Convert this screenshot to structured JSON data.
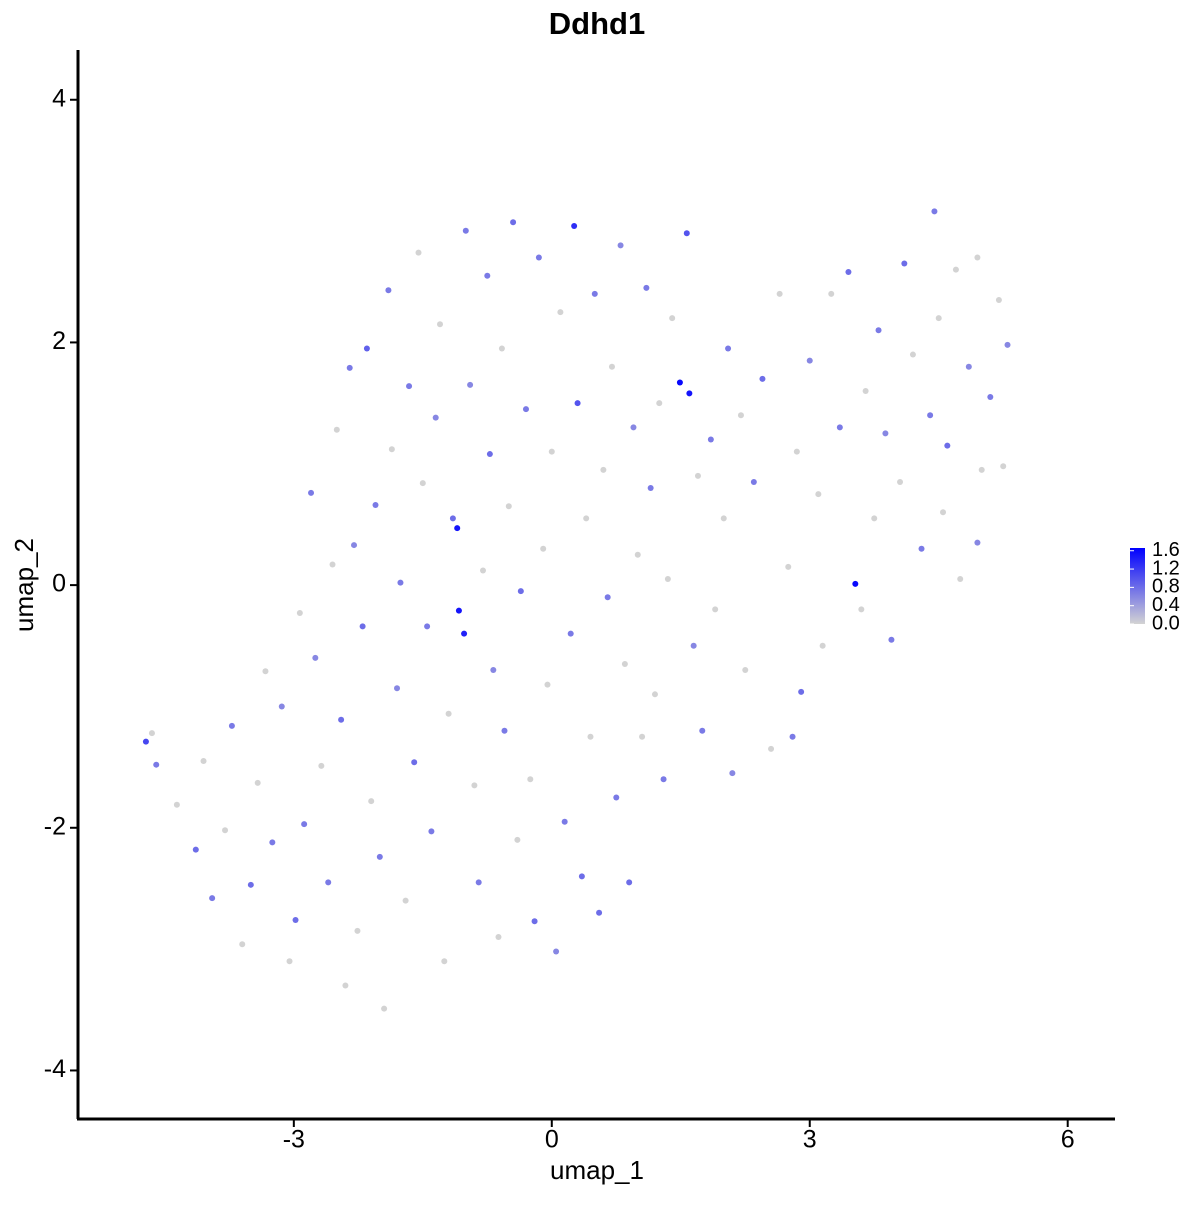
{
  "chart_data": {
    "type": "scatter",
    "title": "Ddhd1",
    "xlabel": "umap_1",
    "ylabel": "umap_2",
    "xlim": [
      -5.51,
      6.55
    ],
    "ylim": [
      -4.4,
      4.41
    ],
    "xticks": [
      -3,
      0,
      3,
      6
    ],
    "yticks": [
      -4,
      -2,
      0,
      2,
      4
    ],
    "grid": false,
    "color_low": "#d3d3d3",
    "color_high": "#0000ff",
    "colorbar": {
      "lim": [
        0,
        1.66
      ],
      "ticks": [
        {
          "value": 0,
          "label": "0.0"
        },
        0.4,
        0.8,
        1.2,
        1.6
      ]
    },
    "x": [
      -4.72,
      -4.65,
      -4.6,
      -4.36,
      -4.14,
      -4.05,
      -3.95,
      -3.8,
      -3.72,
      -3.6,
      -3.5,
      -3.42,
      -3.33,
      -3.25,
      -3.14,
      -3.05,
      -2.98,
      -2.93,
      -2.88,
      -2.8,
      -2.75,
      -2.68,
      -2.6,
      -2.55,
      -2.5,
      -2.45,
      -2.4,
      -2.35,
      -2.3,
      -2.26,
      -2.2,
      -2.15,
      -2.1,
      -2.05,
      -2.0,
      -1.95,
      -1.9,
      -1.86,
      -1.8,
      -1.76,
      -1.7,
      -1.66,
      -1.6,
      -1.55,
      -1.5,
      -1.45,
      -1.4,
      -1.35,
      -1.3,
      -1.25,
      -1.2,
      -1.15,
      -1.1,
      -1.08,
      -1.02,
      -1.0,
      -0.95,
      -0.9,
      -0.85,
      -0.8,
      -0.75,
      -0.72,
      -0.68,
      -0.62,
      -0.58,
      -0.55,
      -0.5,
      -0.45,
      -0.4,
      -0.36,
      -0.3,
      -0.25,
      -0.2,
      -0.15,
      -0.1,
      -0.05,
      0.0,
      0.05,
      0.1,
      0.15,
      0.22,
      0.26,
      0.3,
      0.35,
      0.4,
      0.45,
      0.5,
      0.55,
      0.6,
      0.65,
      0.7,
      0.75,
      0.8,
      0.85,
      0.9,
      0.95,
      1.0,
      1.05,
      1.1,
      1.15,
      1.2,
      1.25,
      1.3,
      1.35,
      1.4,
      1.49,
      1.57,
      1.6,
      1.65,
      1.7,
      1.75,
      1.85,
      1.9,
      2.0,
      2.05,
      2.1,
      2.2,
      2.25,
      2.35,
      2.45,
      2.55,
      2.65,
      2.75,
      2.8,
      2.85,
      2.9,
      3.0,
      3.1,
      3.15,
      3.25,
      3.35,
      3.45,
      3.53,
      3.6,
      3.65,
      3.75,
      3.8,
      3.88,
      3.95,
      4.05,
      4.1,
      4.2,
      4.3,
      4.4,
      4.45,
      4.5,
      4.55,
      4.6,
      4.7,
      4.75,
      4.85,
      4.95,
      5.0,
      5.1,
      5.2,
      5.3,
      5.25,
      4.95
    ],
    "y": [
      -1.29,
      -1.22,
      -1.48,
      -1.81,
      -2.18,
      -1.45,
      -2.58,
      -2.02,
      -1.16,
      -2.96,
      -2.47,
      -1.63,
      -0.71,
      -2.12,
      -1.0,
      -3.1,
      -2.76,
      -0.23,
      -1.97,
      0.76,
      -0.6,
      -1.49,
      -2.45,
      0.17,
      1.28,
      -1.11,
      -3.3,
      1.79,
      0.33,
      -2.85,
      -0.34,
      1.95,
      -1.78,
      0.66,
      -2.24,
      -3.49,
      2.43,
      1.12,
      -0.85,
      0.02,
      -2.6,
      1.64,
      -1.46,
      2.74,
      0.84,
      -0.34,
      -2.03,
      1.38,
      2.15,
      -3.1,
      -1.06,
      0.55,
      0.47,
      -0.21,
      -0.4,
      2.92,
      1.65,
      -1.65,
      -2.45,
      0.12,
      2.55,
      1.08,
      -0.7,
      -2.9,
      1.95,
      -1.2,
      0.65,
      2.99,
      -2.1,
      -0.05,
      1.45,
      -1.6,
      -2.77,
      2.7,
      0.3,
      -0.82,
      1.1,
      -3.02,
      2.25,
      -1.95,
      -0.4,
      2.96,
      1.5,
      -2.4,
      0.55,
      -1.25,
      2.4,
      -2.7,
      0.95,
      -0.1,
      1.8,
      -1.75,
      2.8,
      -0.65,
      -2.45,
      1.3,
      0.25,
      -1.25,
      2.45,
      0.8,
      -0.9,
      1.5,
      -1.6,
      0.05,
      2.2,
      1.67,
      2.9,
      1.58,
      -0.5,
      0.9,
      -1.2,
      1.2,
      -0.2,
      0.55,
      1.95,
      -1.55,
      1.4,
      -0.7,
      0.85,
      1.7,
      -1.35,
      2.4,
      0.15,
      -1.25,
      1.1,
      -0.88,
      1.85,
      0.75,
      -0.5,
      2.4,
      1.3,
      2.58,
      0.01,
      -0.2,
      1.6,
      0.55,
      2.1,
      1.25,
      -0.45,
      0.85,
      2.65,
      1.9,
      0.3,
      1.4,
      3.08,
      2.2,
      0.6,
      1.15,
      2.6,
      0.05,
      1.8,
      2.7,
      0.95,
      1.55,
      2.35,
      1.98,
      0.98,
      0.35
    ],
    "values": [
      1.1,
      0,
      0.7,
      0,
      0.8,
      0,
      0.7,
      0,
      0.7,
      0,
      0.8,
      0,
      0,
      0.7,
      0.6,
      0,
      0.8,
      0,
      0.7,
      0.7,
      0.6,
      0,
      0.7,
      0,
      0,
      0.8,
      0,
      0.7,
      0.6,
      0,
      0.8,
      0.9,
      0,
      0.7,
      0.7,
      0,
      0.7,
      0,
      0.6,
      0.7,
      0,
      0.7,
      0.8,
      0,
      0,
      0.7,
      0.7,
      0.6,
      0,
      0,
      0,
      0.8,
      1.5,
      1.5,
      1.4,
      0.7,
      0.6,
      0,
      0.7,
      0,
      0.7,
      0.8,
      0.6,
      0,
      0,
      0.7,
      0,
      0.8,
      0,
      0.8,
      0.7,
      0,
      0.8,
      0.7,
      0,
      0,
      0,
      0.6,
      0,
      0.7,
      0.7,
      1.3,
      1.0,
      0.8,
      0,
      0,
      0.7,
      0.8,
      0,
      0.7,
      0,
      0.7,
      0.6,
      0,
      0.8,
      0.6,
      0,
      0,
      0.7,
      0.7,
      0,
      0,
      0.7,
      0,
      0,
      1.6,
      1.0,
      1.5,
      0.6,
      0,
      0.7,
      0.7,
      0,
      0,
      0.7,
      0.6,
      0,
      0,
      0.7,
      0.8,
      0,
      0,
      0,
      0.7,
      0,
      0.8,
      0.6,
      0,
      0,
      0,
      0.7,
      0.8,
      1.6,
      0,
      0,
      0,
      0.7,
      0.6,
      0.7,
      0,
      0.8,
      0,
      0.7,
      0.7,
      0.7,
      0,
      0,
      0.8,
      0,
      0,
      0.6,
      0,
      0,
      0.7,
      0,
      0.6,
      0,
      0.6
    ]
  }
}
